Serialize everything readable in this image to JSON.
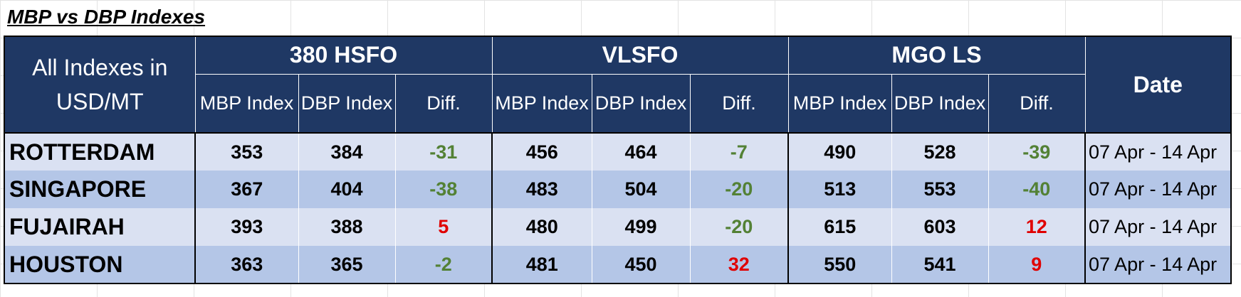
{
  "title": "MBP vs DBP Indexes",
  "header": {
    "corner_label": "All Indexes in USD/MT",
    "groups": [
      "380 HSFO",
      "VLSFO",
      "MGO LS"
    ],
    "sub_columns": [
      "MBP Index",
      "DBP Index",
      "Diff."
    ],
    "date_label": "Date"
  },
  "colors": {
    "header_bg": "#1f3864",
    "row_light": "#dae1f2",
    "row_dark": "#b4c6e7",
    "negative_diff": "#538135",
    "positive_diff": "#e00000"
  },
  "rows": [
    {
      "city": "ROTTERDAM",
      "hsfo": {
        "mbp": "353",
        "dbp": "384",
        "diff": "-31"
      },
      "vlsfo": {
        "mbp": "456",
        "dbp": "464",
        "diff": "-7"
      },
      "mgo": {
        "mbp": "490",
        "dbp": "528",
        "diff": "-39"
      },
      "date": "07 Apr - 14 Apr"
    },
    {
      "city": "SINGAPORE",
      "hsfo": {
        "mbp": "367",
        "dbp": "404",
        "diff": "-38"
      },
      "vlsfo": {
        "mbp": "483",
        "dbp": "504",
        "diff": "-20"
      },
      "mgo": {
        "mbp": "513",
        "dbp": "553",
        "diff": "-40"
      },
      "date": "07 Apr - 14 Apr"
    },
    {
      "city": "FUJAIRAH",
      "hsfo": {
        "mbp": "393",
        "dbp": "388",
        "diff": "5"
      },
      "vlsfo": {
        "mbp": "480",
        "dbp": "499",
        "diff": "-20"
      },
      "mgo": {
        "mbp": "615",
        "dbp": "603",
        "diff": "12"
      },
      "date": "07 Apr - 14 Apr"
    },
    {
      "city": "HOUSTON",
      "hsfo": {
        "mbp": "363",
        "dbp": "365",
        "diff": "-2"
      },
      "vlsfo": {
        "mbp": "481",
        "dbp": "450",
        "diff": "32"
      },
      "mgo": {
        "mbp": "550",
        "dbp": "541",
        "diff": "9"
      },
      "date": "07 Apr - 14 Apr"
    }
  ]
}
